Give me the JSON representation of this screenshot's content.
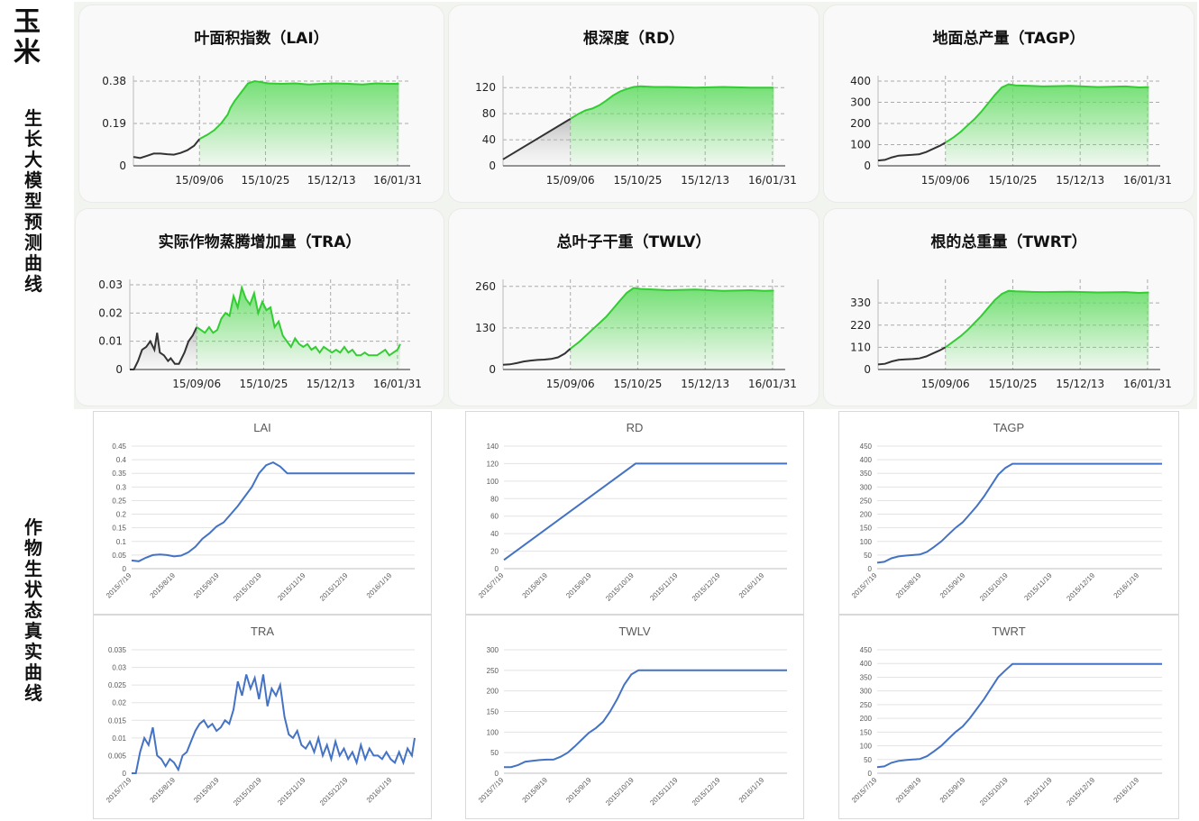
{
  "crop_label": "玉米",
  "pred_label": "生长大模型预测曲线",
  "real_label": "作物生状态真实曲线",
  "colors": {
    "pred_line": "#33cc33",
    "pred_fill": "#66dd66",
    "hist_line": "#333333",
    "real_line": "#4472c4"
  },
  "chart_data": [
    {
      "id": "p_lai",
      "type": "area",
      "title": "叶面积指数（LAI）",
      "x_ticks": [
        "15/09/06",
        "15/10/25",
        "15/12/13",
        "16/01/31"
      ],
      "x_tick_days": [
        49,
        98,
        147,
        196
      ],
      "xlim": [
        0,
        200
      ],
      "y_ticks": [
        "0",
        "0.19",
        "0.38"
      ],
      "ylim": [
        0,
        0.38
      ],
      "split_day": 49,
      "x": [
        0,
        5,
        10,
        15,
        20,
        25,
        30,
        35,
        40,
        45,
        49,
        55,
        60,
        65,
        70,
        72,
        75,
        80,
        85,
        90,
        95,
        100,
        110,
        120,
        130,
        140,
        150,
        160,
        170,
        180,
        190,
        197
      ],
      "y": [
        0.04,
        0.035,
        0.045,
        0.055,
        0.055,
        0.052,
        0.05,
        0.058,
        0.07,
        0.09,
        0.12,
        0.14,
        0.16,
        0.19,
        0.23,
        0.26,
        0.29,
        0.33,
        0.37,
        0.38,
        0.375,
        0.37,
        0.368,
        0.37,
        0.365,
        0.368,
        0.37,
        0.368,
        0.365,
        0.37,
        0.368,
        0.368
      ]
    },
    {
      "id": "p_rd",
      "type": "area",
      "title": "根深度（RD）",
      "x_ticks": [
        "15/09/06",
        "15/10/25",
        "15/12/13",
        "16/01/31"
      ],
      "x_tick_days": [
        49,
        98,
        147,
        196
      ],
      "xlim": [
        0,
        200
      ],
      "y_ticks": [
        "0",
        "40",
        "80",
        "120"
      ],
      "ylim": [
        0,
        130
      ],
      "split_day": 49,
      "x": [
        0,
        49,
        55,
        60,
        65,
        70,
        75,
        80,
        85,
        90,
        95,
        100,
        110,
        120,
        140,
        160,
        180,
        197
      ],
      "y": [
        10,
        72,
        80,
        85,
        88,
        93,
        100,
        108,
        114,
        118,
        121,
        122,
        121,
        121,
        120,
        121,
        120,
        120
      ]
    },
    {
      "id": "p_tagp",
      "type": "area",
      "title": "地面总产量（TAGP）",
      "x_ticks": [
        "15/09/06",
        "15/10/25",
        "15/12/13",
        "16/01/31"
      ],
      "x_tick_days": [
        49,
        98,
        147,
        196
      ],
      "xlim": [
        0,
        200
      ],
      "y_ticks": [
        "0",
        "100",
        "200",
        "300",
        "400"
      ],
      "ylim": [
        0,
        400
      ],
      "split_day": 49,
      "x": [
        0,
        5,
        10,
        15,
        20,
        25,
        30,
        35,
        40,
        45,
        49,
        55,
        60,
        65,
        70,
        75,
        80,
        85,
        90,
        95,
        100,
        110,
        120,
        140,
        160,
        180,
        190,
        197
      ],
      "y": [
        25,
        28,
        40,
        48,
        50,
        52,
        55,
        65,
        80,
        95,
        110,
        135,
        160,
        190,
        220,
        255,
        295,
        335,
        370,
        385,
        380,
        378,
        375,
        378,
        372,
        375,
        370,
        372
      ]
    },
    {
      "id": "p_tra",
      "type": "area",
      "title": "实际作物蒸腾增加量（TRA）",
      "x_ticks": [
        "15/09/06",
        "15/10/25",
        "15/12/13",
        "16/01/31"
      ],
      "x_tick_days": [
        49,
        98,
        147,
        196
      ],
      "xlim": [
        0,
        200
      ],
      "y_ticks": [
        "0",
        "0.01",
        "0.02",
        "0.03"
      ],
      "ylim": [
        0,
        0.03
      ],
      "split_day": 49,
      "x": [
        0,
        3,
        6,
        9,
        12,
        15,
        18,
        20,
        22,
        25,
        28,
        30,
        33,
        36,
        40,
        43,
        46,
        49,
        52,
        55,
        58,
        61,
        64,
        67,
        70,
        73,
        76,
        79,
        82,
        85,
        88,
        91,
        94,
        97,
        100,
        103,
        106,
        109,
        112,
        115,
        118,
        121,
        124,
        127,
        130,
        133,
        136,
        139,
        142,
        145,
        148,
        151,
        154,
        157,
        160,
        163,
        166,
        169,
        172,
        175,
        178,
        181,
        184,
        187,
        190,
        193,
        196,
        198
      ],
      "y": [
        0,
        0,
        0.003,
        0.007,
        0.008,
        0.01,
        0.007,
        0.013,
        0.006,
        0.005,
        0.003,
        0.004,
        0.002,
        0.002,
        0.006,
        0.01,
        0.012,
        0.015,
        0.014,
        0.013,
        0.015,
        0.013,
        0.014,
        0.018,
        0.02,
        0.019,
        0.026,
        0.022,
        0.029,
        0.025,
        0.023,
        0.027,
        0.02,
        0.024,
        0.021,
        0.022,
        0.015,
        0.017,
        0.012,
        0.01,
        0.008,
        0.011,
        0.009,
        0.008,
        0.009,
        0.007,
        0.008,
        0.006,
        0.008,
        0.007,
        0.006,
        0.007,
        0.006,
        0.008,
        0.006,
        0.007,
        0.005,
        0.005,
        0.006,
        0.005,
        0.005,
        0.005,
        0.006,
        0.007,
        0.005,
        0.006,
        0.007,
        0.009
      ]
    },
    {
      "id": "p_twlv",
      "type": "area",
      "title": "总叶子干重（TWLV）",
      "x_ticks": [
        "15/09/06",
        "15/10/25",
        "15/12/13",
        "16/01/31"
      ],
      "x_tick_days": [
        49,
        98,
        147,
        196
      ],
      "xlim": [
        0,
        200
      ],
      "y_ticks": [
        "0",
        "130",
        "260"
      ],
      "ylim": [
        0,
        265
      ],
      "split_day": 49,
      "x": [
        0,
        5,
        10,
        15,
        20,
        25,
        30,
        35,
        40,
        45,
        49,
        55,
        60,
        65,
        70,
        75,
        80,
        85,
        90,
        95,
        100,
        110,
        120,
        140,
        160,
        180,
        190,
        197
      ],
      "y": [
        15,
        16,
        20,
        25,
        28,
        30,
        31,
        33,
        38,
        50,
        65,
        85,
        105,
        125,
        145,
        165,
        190,
        215,
        240,
        255,
        252,
        250,
        248,
        250,
        246,
        248,
        246,
        247
      ]
    },
    {
      "id": "p_twrt",
      "type": "area",
      "title": "根的总重量（TWRT）",
      "x_ticks": [
        "15/09/06",
        "15/10/25",
        "15/12/13",
        "16/01/31"
      ],
      "x_tick_days": [
        49,
        98,
        147,
        196
      ],
      "xlim": [
        0,
        200
      ],
      "y_ticks": [
        "0",
        "110",
        "220",
        "330"
      ],
      "ylim": [
        0,
        420
      ],
      "split_day": 49,
      "x": [
        0,
        5,
        10,
        15,
        20,
        25,
        30,
        35,
        40,
        45,
        49,
        55,
        60,
        65,
        70,
        75,
        80,
        85,
        90,
        95,
        100,
        110,
        120,
        140,
        160,
        180,
        190,
        197
      ],
      "y": [
        25,
        28,
        40,
        48,
        50,
        52,
        55,
        65,
        80,
        95,
        110,
        140,
        165,
        195,
        230,
        265,
        305,
        345,
        375,
        390,
        388,
        385,
        384,
        385,
        382,
        384,
        380,
        382
      ]
    },
    {
      "id": "r_lai",
      "type": "line",
      "title": "LAI",
      "x_ticks": [
        "2015/7/19",
        "2015/8/19",
        "2015/9/19",
        "2015/10/19",
        "2015/11/19",
        "2015/12/19",
        "2016/1/19"
      ],
      "x_tick_days": [
        0,
        31,
        62,
        92,
        123,
        153,
        184
      ],
      "xlim": [
        0,
        200
      ],
      "y_ticks": [
        "0",
        "0.05",
        "0.1",
        "0.15",
        "0.2",
        "0.25",
        "0.3",
        "0.35",
        "0.4",
        "0.45"
      ],
      "ylim": [
        0,
        0.45
      ],
      "x": [
        0,
        5,
        10,
        15,
        20,
        25,
        30,
        35,
        40,
        45,
        50,
        55,
        60,
        65,
        70,
        75,
        80,
        85,
        90,
        95,
        100,
        105,
        110,
        120,
        140,
        160,
        180,
        200
      ],
      "y": [
        0.03,
        0.027,
        0.04,
        0.05,
        0.052,
        0.05,
        0.045,
        0.048,
        0.06,
        0.08,
        0.11,
        0.13,
        0.155,
        0.17,
        0.2,
        0.23,
        0.265,
        0.3,
        0.35,
        0.38,
        0.39,
        0.375,
        0.35,
        0.35,
        0.35,
        0.35,
        0.35,
        0.35
      ]
    },
    {
      "id": "r_rd",
      "type": "line",
      "title": "RD",
      "x_ticks": [
        "2015/7/19",
        "2015/8/19",
        "2015/9/19",
        "2015/10/19",
        "2015/11/19",
        "2015/12/19",
        "2016/1/19"
      ],
      "x_tick_days": [
        0,
        31,
        62,
        92,
        123,
        153,
        184
      ],
      "xlim": [
        0,
        200
      ],
      "y_ticks": [
        "0",
        "20",
        "40",
        "60",
        "80",
        "100",
        "120",
        "140"
      ],
      "ylim": [
        0,
        140
      ],
      "x": [
        0,
        93,
        200
      ],
      "y": [
        10,
        120,
        120
      ]
    },
    {
      "id": "r_tagp",
      "type": "line",
      "title": "TAGP",
      "x_ticks": [
        "2015/7/19",
        "2015/8/19",
        "2015/9/19",
        "2015/10/19",
        "2015/11/19",
        "2015/12/19",
        "2016/1/19"
      ],
      "x_tick_days": [
        0,
        31,
        62,
        92,
        123,
        153,
        184
      ],
      "xlim": [
        0,
        200
      ],
      "y_ticks": [
        "0",
        "50",
        "100",
        "150",
        "200",
        "250",
        "300",
        "350",
        "400",
        "450"
      ],
      "ylim": [
        0,
        450
      ],
      "x": [
        0,
        5,
        10,
        15,
        20,
        25,
        30,
        35,
        40,
        45,
        50,
        55,
        60,
        65,
        70,
        75,
        80,
        85,
        90,
        95,
        100,
        120,
        140,
        160,
        180,
        200
      ],
      "y": [
        22,
        25,
        38,
        45,
        48,
        50,
        52,
        62,
        80,
        100,
        125,
        150,
        170,
        200,
        230,
        265,
        305,
        345,
        370,
        385,
        385,
        385,
        385,
        385,
        385,
        385
      ]
    },
    {
      "id": "r_tra",
      "type": "line",
      "title": "TRA",
      "x_ticks": [
        "2015/7/19",
        "2015/8/19",
        "2015/9/19",
        "2015/10/19",
        "2015/11/19",
        "2015/12/19",
        "2016/1/19"
      ],
      "x_tick_days": [
        0,
        31,
        62,
        92,
        123,
        153,
        184
      ],
      "xlim": [
        0,
        200
      ],
      "y_ticks": [
        "0",
        "0.005",
        "0.01",
        "0.015",
        "0.02",
        "0.025",
        "0.03",
        "0.035"
      ],
      "ylim": [
        0,
        0.035
      ],
      "x": [
        0,
        3,
        6,
        9,
        12,
        15,
        18,
        21,
        24,
        27,
        30,
        33,
        36,
        39,
        42,
        45,
        48,
        51,
        54,
        57,
        60,
        63,
        66,
        69,
        72,
        75,
        78,
        81,
        84,
        87,
        90,
        93,
        96,
        99,
        102,
        105,
        108,
        111,
        114,
        117,
        120,
        123,
        126,
        129,
        132,
        135,
        138,
        141,
        144,
        147,
        150,
        153,
        156,
        159,
        162,
        165,
        168,
        171,
        174,
        177,
        180,
        183,
        186,
        189,
        192,
        195,
        198,
        200
      ],
      "y": [
        0,
        0,
        0.006,
        0.01,
        0.008,
        0.013,
        0.005,
        0.004,
        0.002,
        0.004,
        0.003,
        0.001,
        0.005,
        0.006,
        0.009,
        0.012,
        0.014,
        0.015,
        0.013,
        0.014,
        0.012,
        0.013,
        0.015,
        0.014,
        0.018,
        0.026,
        0.022,
        0.028,
        0.024,
        0.027,
        0.021,
        0.028,
        0.019,
        0.024,
        0.022,
        0.025,
        0.016,
        0.011,
        0.01,
        0.012,
        0.008,
        0.007,
        0.009,
        0.006,
        0.01,
        0.005,
        0.008,
        0.004,
        0.009,
        0.005,
        0.007,
        0.004,
        0.006,
        0.003,
        0.008,
        0.004,
        0.007,
        0.005,
        0.005,
        0.004,
        0.006,
        0.004,
        0.003,
        0.006,
        0.003,
        0.007,
        0.005,
        0.01
      ]
    },
    {
      "id": "r_twlv",
      "type": "line",
      "title": "TWLV",
      "x_ticks": [
        "2015/7/19",
        "2015/8/19",
        "2015/9/19",
        "2015/10/19",
        "2015/11/19",
        "2015/12/19",
        "2016/1/19"
      ],
      "x_tick_days": [
        0,
        31,
        62,
        92,
        123,
        153,
        184
      ],
      "xlim": [
        0,
        200
      ],
      "y_ticks": [
        "0",
        "50",
        "100",
        "150",
        "200",
        "250",
        "300"
      ],
      "ylim": [
        0,
        300
      ],
      "x": [
        0,
        5,
        10,
        15,
        20,
        25,
        30,
        35,
        40,
        45,
        50,
        55,
        60,
        65,
        70,
        75,
        80,
        85,
        90,
        95,
        100,
        120,
        140,
        160,
        180,
        200
      ],
      "y": [
        15,
        15,
        20,
        28,
        30,
        32,
        33,
        33,
        40,
        50,
        65,
        82,
        98,
        110,
        125,
        150,
        180,
        215,
        240,
        250,
        250,
        250,
        250,
        250,
        250,
        250
      ]
    },
    {
      "id": "r_twrt",
      "type": "line",
      "title": "TWRT",
      "x_ticks": [
        "2015/7/19",
        "2015/8/19",
        "2015/9/19",
        "2015/10/19",
        "2015/11/19",
        "2015/12/19",
        "2016/1/19"
      ],
      "x_tick_days": [
        0,
        31,
        62,
        92,
        123,
        153,
        184
      ],
      "xlim": [
        0,
        200
      ],
      "y_ticks": [
        "0",
        "50",
        "100",
        "150",
        "200",
        "250",
        "300",
        "350",
        "400",
        "450"
      ],
      "ylim": [
        0,
        450
      ],
      "x": [
        0,
        5,
        10,
        15,
        20,
        25,
        30,
        35,
        40,
        45,
        50,
        55,
        60,
        65,
        70,
        75,
        80,
        85,
        90,
        95,
        100,
        120,
        140,
        160,
        180,
        200
      ],
      "y": [
        22,
        25,
        38,
        45,
        48,
        50,
        52,
        62,
        80,
        100,
        125,
        150,
        170,
        200,
        235,
        270,
        310,
        350,
        375,
        398,
        398,
        398,
        398,
        398,
        398,
        398
      ]
    }
  ]
}
